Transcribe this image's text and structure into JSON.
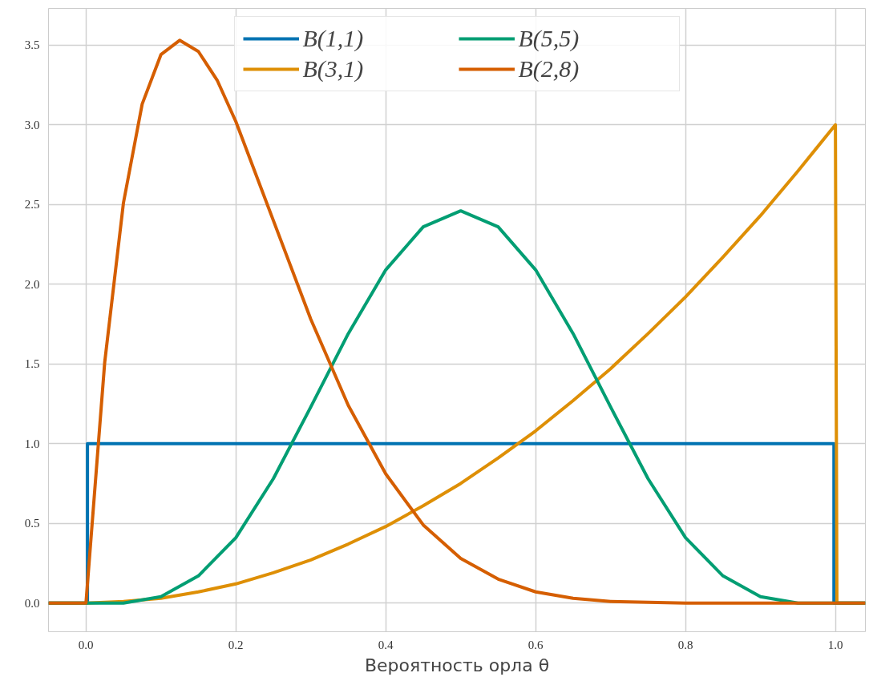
{
  "chart_data": {
    "type": "line",
    "xlabel": "Вероятность орла θ",
    "xlim": [
      -0.05,
      1.04
    ],
    "ylim": [
      -0.18,
      3.73
    ],
    "xticks": [
      {
        "value": 0,
        "label": "0.0"
      },
      0.2,
      0.4,
      0.6,
      0.8,
      {
        "value": 1,
        "label": "1.0"
      }
    ],
    "yticks": [
      {
        "value": 0,
        "label": "0.0"
      },
      0.5,
      {
        "value": 1,
        "label": "1.0"
      },
      1.5,
      {
        "value": 2,
        "label": "2.0"
      },
      2.5,
      {
        "value": 3,
        "label": "3.0"
      },
      3.5
    ],
    "grid": true,
    "legend": "top",
    "line_style": "solid",
    "marker": "none",
    "series": [
      {
        "name": "B(1,1)",
        "color": "#0173b2",
        "x": [
          -0.05,
          0.002,
          0.002,
          0.998,
          0.998,
          1.04
        ],
        "values": [
          0,
          0,
          1,
          1,
          0,
          0
        ]
      },
      {
        "name": "B(3,1)",
        "color": "#de8f05",
        "x": [
          -0.05,
          0,
          0.05,
          0.1,
          0.15,
          0.2,
          0.25,
          0.3,
          0.35,
          0.4,
          0.45,
          0.5,
          0.55,
          0.6,
          0.65,
          0.7,
          0.75,
          0.8,
          0.85,
          0.9,
          0.95,
          1.0,
          1.002,
          1.04
        ],
        "values": [
          0,
          0,
          0.01,
          0.03,
          0.07,
          0.12,
          0.19,
          0.27,
          0.37,
          0.48,
          0.61,
          0.75,
          0.91,
          1.08,
          1.27,
          1.47,
          1.69,
          1.92,
          2.17,
          2.43,
          2.71,
          3.0,
          0,
          0
        ]
      },
      {
        "name": "B(5,5)",
        "color": "#029e73",
        "x": [
          -0.05,
          0,
          0.05,
          0.1,
          0.15,
          0.2,
          0.25,
          0.3,
          0.35,
          0.4,
          0.45,
          0.5,
          0.55,
          0.6,
          0.65,
          0.7,
          0.75,
          0.8,
          0.85,
          0.9,
          0.95,
          1.0,
          1.04
        ],
        "values": [
          0,
          0,
          0,
          0.04,
          0.17,
          0.41,
          0.78,
          1.23,
          1.69,
          2.09,
          2.36,
          2.46,
          2.36,
          2.09,
          1.69,
          1.23,
          0.78,
          0.41,
          0.17,
          0.04,
          0,
          0,
          0
        ]
      },
      {
        "name": "B(2,8)",
        "color": "#d55e00",
        "x": [
          -0.05,
          0,
          0.025,
          0.05,
          0.075,
          0.1,
          0.125,
          0.15,
          0.175,
          0.2,
          0.25,
          0.3,
          0.35,
          0.4,
          0.45,
          0.5,
          0.55,
          0.6,
          0.65,
          0.7,
          0.8,
          0.9,
          1.0,
          1.04
        ],
        "values": [
          0,
          0,
          1.51,
          2.51,
          3.13,
          3.44,
          3.53,
          3.46,
          3.28,
          3.02,
          2.4,
          1.78,
          1.24,
          0.81,
          0.49,
          0.28,
          0.15,
          0.07,
          0.03,
          0.01,
          0,
          0,
          0,
          0
        ]
      }
    ]
  }
}
